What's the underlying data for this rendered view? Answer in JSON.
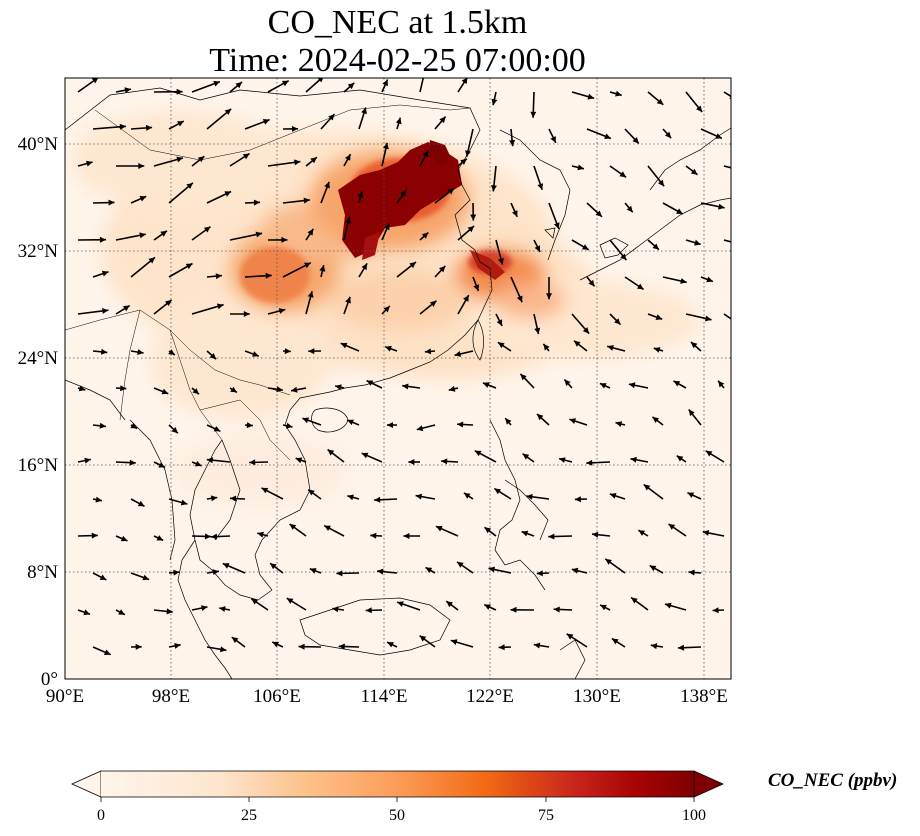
{
  "title_line1": "CO_NEC at 1.5km",
  "title_line2": "Time: 2024-02-25 07:00:00",
  "map": {
    "type": "heatmap",
    "region": {
      "lon_range": [
        90,
        140
      ],
      "lat_range": [
        0,
        45
      ]
    },
    "x_tick_labels": [
      "90°E",
      "98°E",
      "106°E",
      "114°E",
      "122°E",
      "130°E",
      "138°E"
    ],
    "x_tick_values": [
      90,
      98,
      106,
      114,
      122,
      130,
      138
    ],
    "y_tick_labels": [
      "0°",
      "8°N",
      "16°N",
      "24°N",
      "32°N",
      "40°N"
    ],
    "y_tick_values": [
      0,
      8,
      16,
      24,
      32,
      40
    ],
    "grid": "dotted gridlines at labeled ticks",
    "overlay": "wind vectors (arrows)",
    "high_concentration_areas": [
      {
        "lon": 115,
        "lat": 36,
        "level": 100
      },
      {
        "lon": 104,
        "lat": 30,
        "level": 60
      },
      {
        "lon": 123,
        "lat": 31,
        "level": 75
      }
    ]
  },
  "colorbar": {
    "label": "CO_NEC (ppbv)",
    "tick_labels": [
      "0",
      "25",
      "50",
      "75",
      "100"
    ],
    "range": [
      0,
      100
    ],
    "extend": "both",
    "colors": [
      "#fff5eb",
      "#fdd9b0",
      "#fdab67",
      "#f3701b",
      "#d94801",
      "#a20303",
      "#7f0000"
    ]
  }
}
